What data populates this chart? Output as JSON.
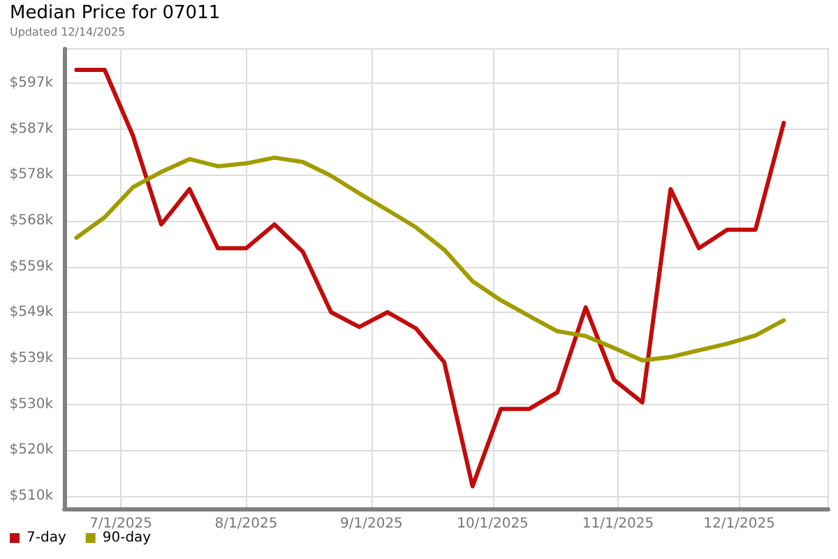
{
  "chart_data": {
    "type": "line",
    "title": "Median Price for 07011",
    "subtitle": "Updated 12/14/2025",
    "x": [
      "2025-06-20",
      "2025-06-27",
      "2025-07-04",
      "2025-07-11",
      "2025-07-18",
      "2025-07-25",
      "2025-08-01",
      "2025-08-08",
      "2025-08-15",
      "2025-08-22",
      "2025-08-29",
      "2025-09-05",
      "2025-09-12",
      "2025-09-19",
      "2025-09-26",
      "2025-10-03",
      "2025-10-10",
      "2025-10-17",
      "2025-10-24",
      "2025-10-31",
      "2025-11-07",
      "2025-11-14",
      "2025-11-21",
      "2025-11-28",
      "2025-12-05",
      "2025-12-12"
    ],
    "series": [
      {
        "name": "7-day",
        "color": "#c20c0c",
        "values": [
          599.8,
          599.8,
          586.0,
          567.4,
          574.8,
          562.4,
          562.4,
          567.4,
          561.7,
          549.0,
          545.9,
          549.0,
          545.6,
          538.5,
          512.5,
          528.7,
          528.7,
          532.2,
          550.0,
          534.8,
          530.1,
          574.8,
          562.4,
          566.3,
          566.3,
          588.7
        ]
      },
      {
        "name": "90-day",
        "color": "#a09c00",
        "values": [
          564.6,
          568.9,
          575.2,
          578.4,
          581.1,
          579.6,
          580.2,
          581.4,
          580.5,
          577.6,
          573.9,
          570.4,
          566.8,
          562.1,
          555.5,
          551.5,
          548.2,
          545.0,
          544.0,
          541.5,
          538.9,
          539.6,
          541.0,
          542.4,
          544.1,
          547.3
        ]
      }
    ],
    "xlim": [
      "2025-06-17",
      "2025-12-23"
    ],
    "xticks": [
      {
        "value": "2025-07-01",
        "label": "7/1/2025"
      },
      {
        "value": "2025-08-01",
        "label": "8/1/2025"
      },
      {
        "value": "2025-09-01",
        "label": "9/1/2025"
      },
      {
        "value": "2025-10-01",
        "label": "10/1/2025"
      },
      {
        "value": "2025-11-01",
        "label": "11/1/2025"
      },
      {
        "value": "2025-12-01",
        "label": "12/1/2025"
      }
    ],
    "ylim": [
      507.8,
      604.2
    ],
    "yticks": [
      {
        "value": 510.45,
        "label": "$510k"
      },
      {
        "value": 520.07,
        "label": "$520k"
      },
      {
        "value": 529.69,
        "label": "$530k"
      },
      {
        "value": 539.31,
        "label": "$539k"
      },
      {
        "value": 548.93,
        "label": "$549k"
      },
      {
        "value": 558.55,
        "label": "$559k"
      },
      {
        "value": 568.17,
        "label": "$568k"
      },
      {
        "value": 577.79,
        "label": "$578k"
      },
      {
        "value": 587.41,
        "label": "$587k"
      },
      {
        "value": 597.03,
        "label": "$597k"
      }
    ],
    "grid": true,
    "legend": "bottom left",
    "marker": "none",
    "line_style": "solid"
  }
}
